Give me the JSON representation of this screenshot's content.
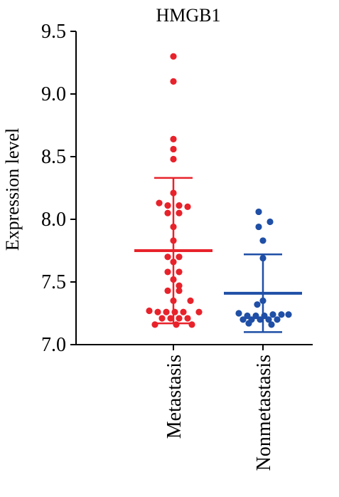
{
  "chart_data": {
    "type": "scatter",
    "title": "HMGB1",
    "xlabel": "",
    "ylabel": "Expression level",
    "ylim": [
      7.0,
      9.5
    ],
    "yticks": [
      "7.0",
      "7.5",
      "8.0",
      "8.5",
      "9.0",
      "9.5"
    ],
    "grid": false,
    "categories": [
      "Metastasis",
      "Nonmetastasis"
    ],
    "series": [
      {
        "category": "Metastasis",
        "color": "#e8222b",
        "mean": 7.75,
        "sd_low": 7.17,
        "sd_high": 8.33,
        "points": [
          [
            0,
            9.3
          ],
          [
            0,
            9.1
          ],
          [
            0,
            8.64
          ],
          [
            0,
            8.56
          ],
          [
            0,
            8.48
          ],
          [
            0,
            8.21
          ],
          [
            -0.5,
            8.13
          ],
          [
            -0.2,
            8.11
          ],
          [
            0.2,
            8.11
          ],
          [
            0.5,
            8.1
          ],
          [
            -0.2,
            8.05
          ],
          [
            0.2,
            8.05
          ],
          [
            0,
            7.94
          ],
          [
            0,
            7.83
          ],
          [
            -0.2,
            7.7
          ],
          [
            0.2,
            7.7
          ],
          [
            0,
            7.66
          ],
          [
            -0.2,
            7.58
          ],
          [
            0.2,
            7.58
          ],
          [
            0,
            7.52
          ],
          [
            0.2,
            7.47
          ],
          [
            -0.2,
            7.43
          ],
          [
            0.2,
            7.43
          ],
          [
            0,
            7.35
          ],
          [
            0.6,
            7.35
          ],
          [
            -0.85,
            7.27
          ],
          [
            -0.55,
            7.26
          ],
          [
            -0.25,
            7.26
          ],
          [
            0.05,
            7.26
          ],
          [
            0.35,
            7.26
          ],
          [
            0.9,
            7.26
          ],
          [
            -0.4,
            7.21
          ],
          [
            -0.1,
            7.21
          ],
          [
            0.2,
            7.21
          ],
          [
            0.5,
            7.21
          ],
          [
            -0.65,
            7.16
          ],
          [
            0.1,
            7.16
          ],
          [
            0.65,
            7.16
          ]
        ]
      },
      {
        "category": "Nonmetastasis",
        "color": "#1f4fa6",
        "mean": 7.41,
        "sd_low": 7.1,
        "sd_high": 7.72,
        "points": [
          [
            -0.15,
            8.06
          ],
          [
            -0.15,
            7.94
          ],
          [
            0.25,
            7.98
          ],
          [
            0,
            7.83
          ],
          [
            0,
            7.69
          ],
          [
            0,
            7.35
          ],
          [
            -0.2,
            7.32
          ],
          [
            -0.85,
            7.25
          ],
          [
            -0.55,
            7.23
          ],
          [
            -0.25,
            7.23
          ],
          [
            0.05,
            7.23
          ],
          [
            0.35,
            7.24
          ],
          [
            0.65,
            7.24
          ],
          [
            0.9,
            7.24
          ],
          [
            -0.7,
            7.2
          ],
          [
            -0.4,
            7.2
          ],
          [
            -0.1,
            7.2
          ],
          [
            0.2,
            7.2
          ],
          [
            0.5,
            7.2
          ],
          [
            -0.5,
            7.17
          ],
          [
            0.3,
            7.16
          ]
        ]
      }
    ]
  }
}
